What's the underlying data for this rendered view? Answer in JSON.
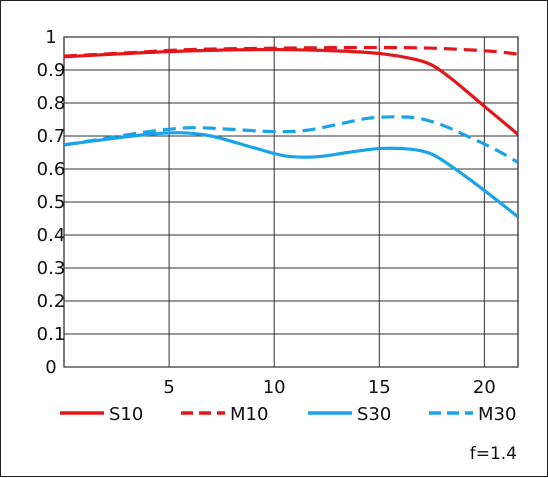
{
  "chart_data": {
    "type": "line",
    "title": "",
    "xlabel": "",
    "ylabel": "",
    "xlim": [
      0,
      21.6
    ],
    "ylim": [
      0,
      1
    ],
    "x_ticks": [
      5,
      10,
      15,
      20
    ],
    "x_tick_labels": [
      "5",
      "10",
      "15",
      "20"
    ],
    "y_ticks": [
      0,
      0.1,
      0.2,
      0.3,
      0.4,
      0.5,
      0.6,
      0.7,
      0.8,
      0.9,
      1
    ],
    "y_tick_labels": [
      "0",
      "0.1",
      "0.2",
      "0.3",
      "0.4",
      "0.5",
      "0.6",
      "0.7",
      "0.8",
      "0.9",
      "1"
    ],
    "grid": true,
    "legend_position": "bottom",
    "series": [
      {
        "name": "S10",
        "color": "#e3171b",
        "dash": "solid",
        "points": [
          [
            0,
            0.94
          ],
          [
            3,
            0.95
          ],
          [
            6,
            0.958
          ],
          [
            10,
            0.962
          ],
          [
            13,
            0.958
          ],
          [
            15,
            0.95
          ],
          [
            16.5,
            0.935
          ],
          [
            17.5,
            0.915
          ],
          [
            18.5,
            0.87
          ],
          [
            20,
            0.79
          ],
          [
            21.6,
            0.705
          ]
        ]
      },
      {
        "name": "M10",
        "color": "#e3171b",
        "dash": "dashed",
        "points": [
          [
            0,
            0.942
          ],
          [
            3,
            0.952
          ],
          [
            6,
            0.962
          ],
          [
            10,
            0.966
          ],
          [
            14,
            0.968
          ],
          [
            17,
            0.967
          ],
          [
            19,
            0.962
          ],
          [
            20.5,
            0.956
          ],
          [
            21.6,
            0.948
          ]
        ]
      },
      {
        "name": "S30",
        "color": "#1aa3e8",
        "dash": "solid",
        "points": [
          [
            0,
            0.673
          ],
          [
            2,
            0.69
          ],
          [
            4,
            0.705
          ],
          [
            5.5,
            0.71
          ],
          [
            7,
            0.7
          ],
          [
            9,
            0.665
          ],
          [
            10.5,
            0.64
          ],
          [
            12,
            0.637
          ],
          [
            13.5,
            0.65
          ],
          [
            15,
            0.662
          ],
          [
            16.5,
            0.66
          ],
          [
            17.5,
            0.645
          ],
          [
            18.5,
            0.605
          ],
          [
            20,
            0.535
          ],
          [
            21.6,
            0.455
          ]
        ]
      },
      {
        "name": "M30",
        "color": "#1aa3e8",
        "dash": "dashed",
        "points": [
          [
            0,
            0.673
          ],
          [
            2,
            0.693
          ],
          [
            4,
            0.713
          ],
          [
            6,
            0.725
          ],
          [
            8,
            0.72
          ],
          [
            10,
            0.713
          ],
          [
            11.5,
            0.717
          ],
          [
            13,
            0.735
          ],
          [
            14.5,
            0.754
          ],
          [
            16,
            0.758
          ],
          [
            17,
            0.752
          ],
          [
            18,
            0.733
          ],
          [
            19,
            0.705
          ],
          [
            20.5,
            0.66
          ],
          [
            21.6,
            0.62
          ]
        ]
      }
    ],
    "annotation": "f=1.4"
  }
}
